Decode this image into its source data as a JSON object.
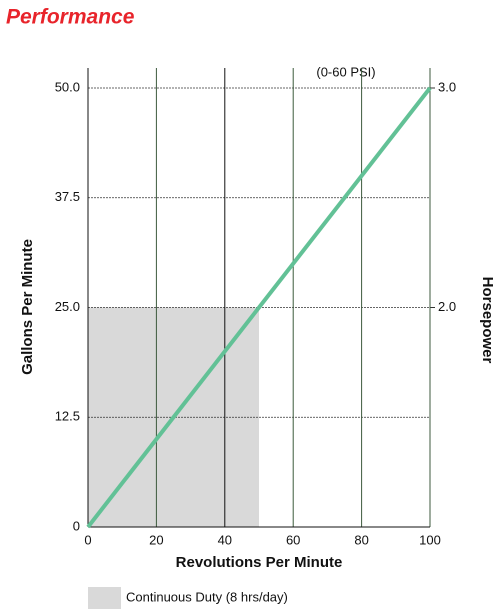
{
  "chart_data": {
    "type": "line",
    "title": "Performance",
    "x_label": "Revolutions Per Minute",
    "y_label": "Gallons Per Minute",
    "y2_label": "Horsepower",
    "annotation": "(0-60 PSI)",
    "series": [
      {
        "name": "Performance",
        "color": "#62c196",
        "x": [
          0,
          100
        ],
        "values": [
          0,
          50
        ]
      }
    ],
    "regions": [
      {
        "name": "Continuous Duty (8 hrs/day)",
        "color": "#d9d9d9",
        "x": [
          0,
          50
        ],
        "y": [
          0,
          25
        ]
      }
    ],
    "xlim": [
      0,
      100
    ],
    "xticks": [
      0,
      20,
      40,
      60,
      80,
      100
    ],
    "ylim": [
      0,
      50
    ],
    "yticks": [
      0,
      12.5,
      {
        "value": 25,
        "label": "25.0"
      },
      37.5,
      {
        "value": 50,
        "label": "50.0"
      }
    ],
    "y2lim": [
      1,
      3
    ],
    "y2ticks": [
      {
        "value": 2,
        "label": "2.0"
      },
      {
        "value": 3,
        "label": "3.0"
      }
    ],
    "grid": true
  }
}
